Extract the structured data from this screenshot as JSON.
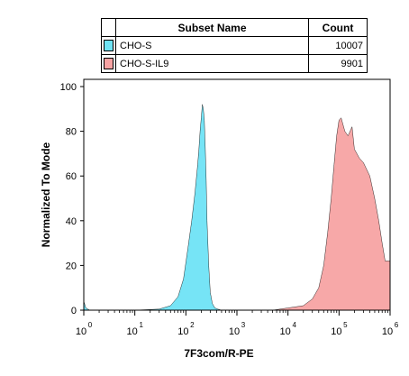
{
  "legend": {
    "header_name": "Subset Name",
    "header_count": "Count",
    "rows": [
      {
        "name": "CHO-S",
        "count": "10007",
        "color": "#6fe3f5"
      },
      {
        "name": "CHO-S-IL9",
        "count": "9901",
        "color": "#f7a3a3"
      }
    ]
  },
  "chart_data": {
    "type": "area",
    "xlabel": "7F3com/R-PE",
    "ylabel": "Normalized To Mode",
    "x_scale": "log",
    "xlim": [
      1,
      1000000
    ],
    "ylim": [
      0,
      100
    ],
    "x_tick_labels": [
      "10",
      "10",
      "10",
      "10",
      "10",
      "10",
      "10"
    ],
    "x_tick_exponents": [
      "0",
      "1",
      "2",
      "3",
      "4",
      "5",
      "6"
    ],
    "y_ticks": [
      0,
      20,
      40,
      60,
      80,
      100
    ],
    "y_tick_labels": [
      "0",
      "20",
      "40",
      "60",
      "80",
      "100"
    ],
    "series": [
      {
        "name": "CHO-S",
        "color": "#6fe3f5",
        "x": [
          1,
          1.1,
          1.3,
          10,
          30,
          50,
          70,
          90,
          110,
          130,
          150,
          170,
          180,
          190,
          200,
          210,
          220,
          230,
          240,
          250,
          260,
          280,
          300,
          330,
          370,
          420,
          500,
          650
        ],
        "y": [
          4,
          1,
          0,
          0,
          0.5,
          2,
          6,
          14,
          28,
          40,
          52,
          65,
          72,
          80,
          86,
          92,
          90,
          85,
          72,
          58,
          40,
          20,
          8,
          3,
          1,
          0.5,
          0,
          0
        ]
      },
      {
        "name": "CHO-S-IL9",
        "color": "#f7a3a3",
        "x": [
          5000,
          10000,
          20000,
          30000,
          40000,
          50000,
          60000,
          70000,
          80000,
          90000,
          100000,
          110000,
          130000,
          150000,
          180000,
          200000,
          250000,
          300000,
          400000,
          500000,
          600000,
          700000,
          800000,
          1000000
        ],
        "y": [
          0,
          1,
          2,
          5,
          10,
          20,
          35,
          50,
          65,
          78,
          85,
          86,
          80,
          78,
          82,
          72,
          68,
          66,
          60,
          50,
          40,
          30,
          22,
          22
        ]
      }
    ]
  }
}
